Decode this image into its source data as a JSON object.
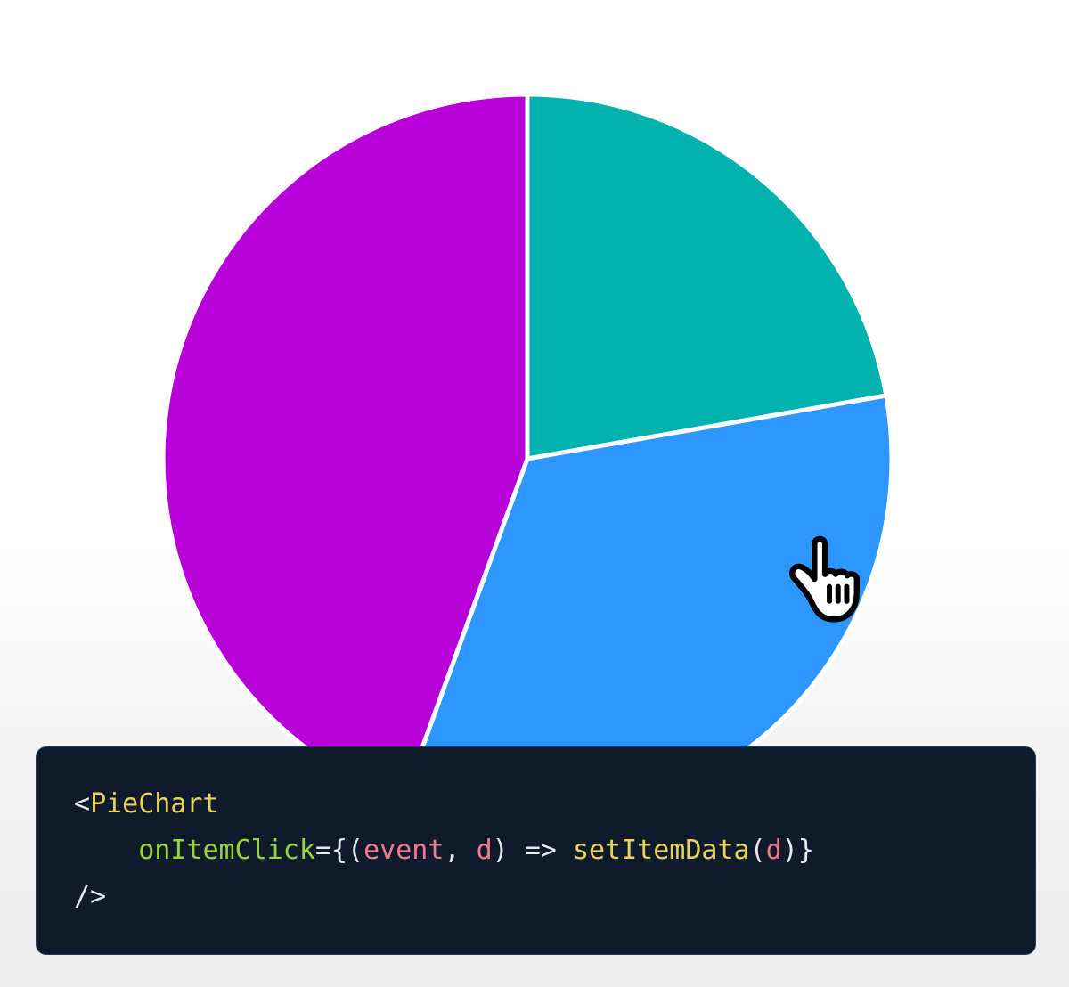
{
  "chart_data": {
    "type": "pie",
    "title": "",
    "legend": "none",
    "start_angle_deg": 0,
    "direction": "clockwise",
    "values": [
      10,
      15,
      20
    ],
    "slices": [
      {
        "id": "slice-1",
        "color": "#02B2AF",
        "start_angle_deg": 0,
        "end_angle_deg": 80,
        "fraction": 0.222
      },
      {
        "id": "slice-2",
        "color": "#2E96FF",
        "start_angle_deg": 80,
        "end_angle_deg": 200,
        "fraction": 0.333
      },
      {
        "id": "slice-3",
        "color": "#B800D8",
        "start_angle_deg": 200,
        "end_angle_deg": 360,
        "fraction": 0.444
      }
    ],
    "slice_gap_stroke": "#ffffff"
  },
  "cursor": {
    "type": "pointer-hand",
    "over_slice": "slice-2"
  },
  "code_block": {
    "language": "jsx",
    "background": "#0f1b2b",
    "border_color": "#1e3a5f",
    "token_colors": {
      "punctuation": "#e7ebf0",
      "tag": "#e8d45c",
      "attr": "#99d53a",
      "variable": "#f2798f",
      "function": "#e8d45c",
      "plain": "#e7ebf0"
    },
    "lines": [
      [
        {
          "text": "<",
          "color": "punctuation"
        },
        {
          "text": "PieChart",
          "color": "tag"
        }
      ],
      [
        {
          "text": "    ",
          "color": "plain"
        },
        {
          "text": "onItemClick",
          "color": "attr"
        },
        {
          "text": "=",
          "color": "punctuation"
        },
        {
          "text": "{(",
          "color": "punctuation"
        },
        {
          "text": "event",
          "color": "variable"
        },
        {
          "text": ", ",
          "color": "punctuation"
        },
        {
          "text": "d",
          "color": "variable"
        },
        {
          "text": ") ",
          "color": "punctuation"
        },
        {
          "text": "=> ",
          "color": "punctuation"
        },
        {
          "text": "setItemData",
          "color": "function"
        },
        {
          "text": "(",
          "color": "punctuation"
        },
        {
          "text": "d",
          "color": "variable"
        },
        {
          "text": ")}",
          "color": "punctuation"
        }
      ],
      [
        {
          "text": "/>",
          "color": "punctuation"
        }
      ]
    ]
  }
}
